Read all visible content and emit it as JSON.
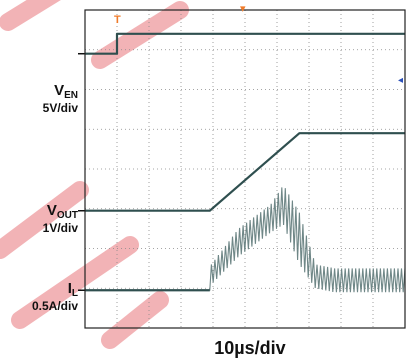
{
  "chart_data": {
    "type": "line",
    "title": "",
    "xlabel": "10µs/div",
    "ylabel": "",
    "grid": true,
    "x_divisions": 10,
    "y_divisions": 8,
    "xlim_us": [
      0,
      100
    ],
    "trace_color": "#2f4f4f",
    "watermark_color": "#e8747a",
    "series": [
      {
        "name": "V",
        "sub": "EN",
        "scale": "5V/div",
        "x_us": [
          0,
          10,
          10,
          100
        ],
        "y_div": [
          6.9,
          6.9,
          7.4,
          7.4
        ]
      },
      {
        "name": "V",
        "sub": "OUT",
        "scale": "1V/div",
        "x_us": [
          0,
          39,
          67,
          100
        ],
        "y_div": [
          2.95,
          2.95,
          4.9,
          4.9
        ]
      },
      {
        "name": "I",
        "sub": "L",
        "scale": "0.5A/div",
        "x_us": [
          0,
          39,
          39.5,
          48,
          58,
          62,
          67,
          72,
          78,
          100
        ],
        "y_min_div": [
          0.95,
          0.95,
          1.1,
          1.8,
          2.4,
          2.6,
          1.6,
          1.0,
          0.9,
          0.9
        ],
        "y_max_div": [
          0.95,
          0.95,
          1.6,
          2.5,
          3.1,
          3.6,
          2.9,
          1.6,
          1.5,
          1.5
        ]
      }
    ],
    "markers": {
      "trigger": "T"
    }
  }
}
